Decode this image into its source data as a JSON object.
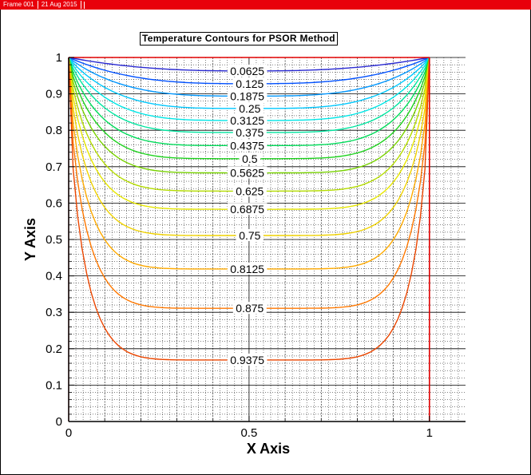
{
  "frame_header": {
    "frame_label": "Frame 001",
    "date_label": "21 Aug 2015"
  },
  "colors": {
    "header_bar": "#e8000b",
    "boundary": "#e00000"
  },
  "chart_data": {
    "type": "contour",
    "title": "Temperature Contours for PSOR Method",
    "xlabel": "X Axis",
    "ylabel": "Y Axis",
    "xlim": [
      0,
      1.1
    ],
    "ylim": [
      0,
      1
    ],
    "x_ticks": [
      "0",
      "0.5",
      "1"
    ],
    "y_ticks": [
      "0",
      "0.1",
      "0.2",
      "0.3",
      "0.4",
      "0.5",
      "0.6",
      "0.7",
      "0.8",
      "0.9",
      "1"
    ],
    "grid": true,
    "domain_x": [
      0,
      1
    ],
    "domain_y": [
      0,
      1
    ],
    "levels": [
      {
        "value": 0.0625,
        "label": "0.0625",
        "center_y": 0.963,
        "color": "#2a2ad2"
      },
      {
        "value": 0.125,
        "label": "0.125",
        "center_y": 0.928,
        "color": "#0050ff"
      },
      {
        "value": 0.1875,
        "label": "0.1875",
        "center_y": 0.894,
        "color": "#0096ff"
      },
      {
        "value": 0.25,
        "label": "0.25",
        "center_y": 0.86,
        "color": "#00c8ff"
      },
      {
        "value": 0.3125,
        "label": "0.3125",
        "center_y": 0.827,
        "color": "#00e6e6"
      },
      {
        "value": 0.375,
        "label": "0.375",
        "center_y": 0.794,
        "color": "#00e6a0"
      },
      {
        "value": 0.4375,
        "label": "0.4375",
        "center_y": 0.758,
        "color": "#00dc5a"
      },
      {
        "value": 0.5,
        "label": "0.5",
        "center_y": 0.722,
        "color": "#1ed21e"
      },
      {
        "value": 0.5625,
        "label": "0.5625",
        "center_y": 0.683,
        "color": "#78d200"
      },
      {
        "value": 0.625,
        "label": "0.625",
        "center_y": 0.633,
        "color": "#b4dc00"
      },
      {
        "value": 0.6875,
        "label": "0.6875",
        "center_y": 0.583,
        "color": "#e6e600"
      },
      {
        "value": 0.75,
        "label": "0.75",
        "center_y": 0.511,
        "color": "#f0d200"
      },
      {
        "value": 0.8125,
        "label": "0.8125",
        "center_y": 0.419,
        "color": "#ffaa00"
      },
      {
        "value": 0.875,
        "label": "0.875",
        "center_y": 0.311,
        "color": "#ff7800"
      },
      {
        "value": 0.9375,
        "label": "0.9375",
        "center_y": 0.169,
        "color": "#eb4600"
      }
    ]
  }
}
